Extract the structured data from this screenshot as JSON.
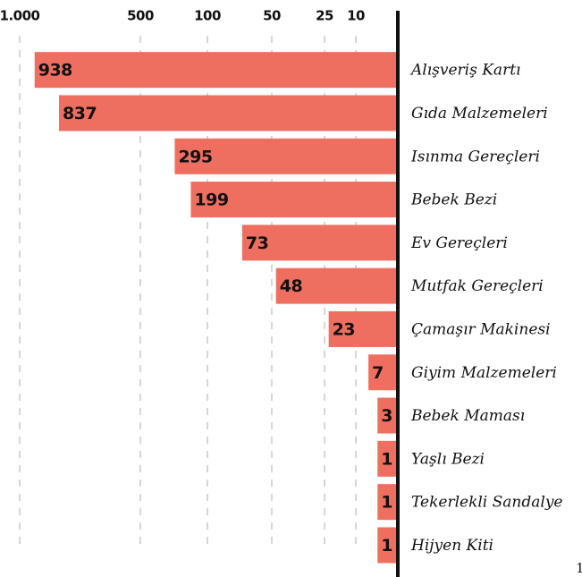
{
  "chart_data": {
    "type": "bar",
    "orientation": "horizontal",
    "categories": [
      "Alışveriş Kartı",
      "Gıda Malzemeleri",
      "Isınma Gereçleri",
      "Bebek Bezi",
      "Ev Gereçleri",
      "Mutfak Gereçleri",
      "Çamaşır Makinesi",
      "Giyim Malzemeleri",
      "Bebek Maması",
      "Yaşlı Bezi",
      "Tekerlekli Sandalye",
      "Hijyen Kiti"
    ],
    "values": [
      938,
      837,
      295,
      199,
      73,
      48,
      23,
      7,
      3,
      1,
      1,
      1
    ],
    "color": "#ee6f5f",
    "xticks": [
      {
        "value": 1000,
        "label": "1.000"
      },
      500,
      100,
      50,
      25,
      10
    ],
    "grid": true,
    "footnote": "1"
  }
}
